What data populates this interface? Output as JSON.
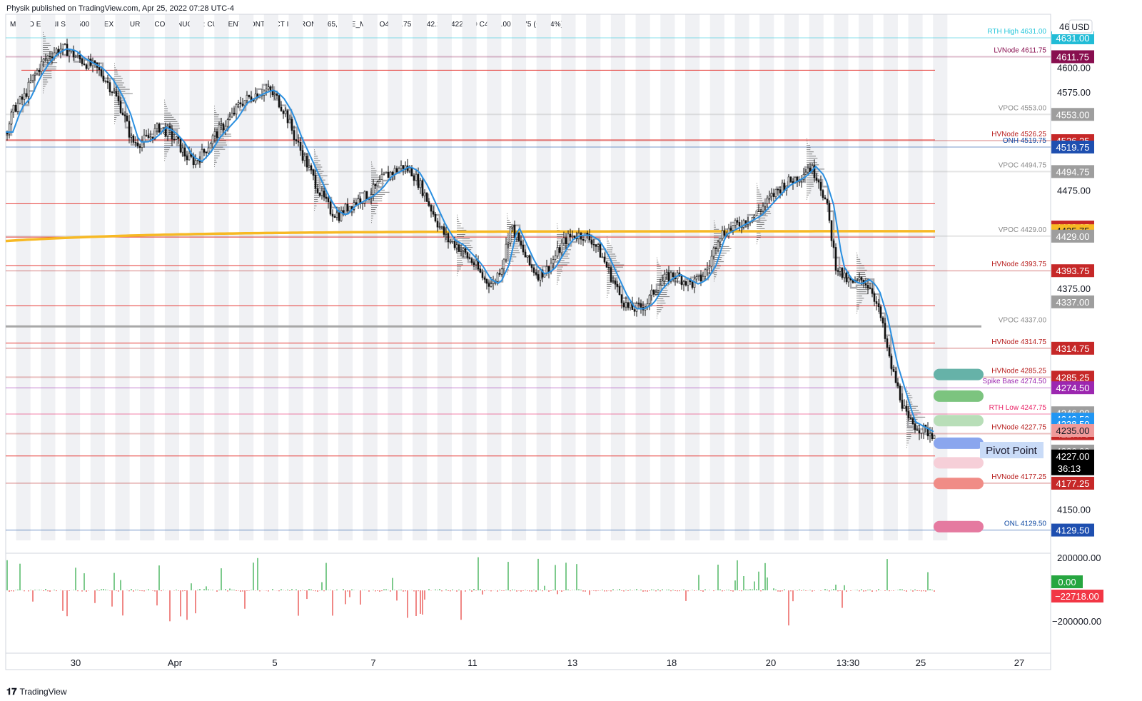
{
  "header": {
    "publisher": "Physik published on TradingView.com, Apr 25, 2022 07:28 UTC-4",
    "title": "MICRO E-MINI S&P 500 INDEX FUTURES (CONTINUOUS: CURRENT CONTRACT IN FRONT), 65, CME_MINI",
    "ohlc": "O4232.75  H4242.25  L4221.50  C4227.00  −5.75 (−0.14%)"
  },
  "footer": {
    "brand": "TradingView",
    "logo_icon": "tradingview-logo-icon"
  },
  "colors": {
    "up": "#26a640",
    "down": "#e53935",
    "vwap": "#f7b924",
    "blue_line": "#2a8fe0",
    "hv": "#b71c1c",
    "vpoc": "#9e9e9e",
    "onh": "#0d47a1",
    "lvnode": "#880e4f",
    "rth_high": "#26c6da",
    "spike": "#9c27b0",
    "rth_low": "#e91e63"
  },
  "chart_data": {
    "type": "candlestick",
    "symbol": "MICRO E-MINI S&P 500 INDEX FUTURES (CONTINUOUS: CURRENT CONTRACT IN FRONT), 65, CME_MINI",
    "currency": "USD",
    "y_axis": {
      "unit": "USD",
      "range": [
        4119,
        4655
      ],
      "ticks": [
        4600.0,
        4575.0,
        4475.0,
        4375.0,
        4150.0
      ],
      "top_partial_label": "465"
    },
    "x_axis": {
      "labels": [
        "30",
        "Apr",
        "5",
        "7",
        "11",
        "13",
        "18",
        "20",
        "13:30",
        "25",
        "27"
      ]
    },
    "price_path": [
      4535,
      4560,
      4570,
      4590,
      4605,
      4615,
      4620,
      4618,
      4610,
      4605,
      4600,
      4590,
      4575,
      4555,
      4525,
      4525,
      4530,
      4540,
      4535,
      4525,
      4510,
      4505,
      4515,
      4530,
      4540,
      4550,
      4565,
      4570,
      4575,
      4578,
      4570,
      4555,
      4530,
      4510,
      4490,
      4470,
      4455,
      4450,
      4460,
      4465,
      4470,
      4478,
      4490,
      4495,
      4500,
      4495,
      4480,
      4460,
      4440,
      4425,
      4420,
      4410,
      4400,
      4385,
      4380,
      4400,
      4440,
      4420,
      4400,
      4390,
      4395,
      4410,
      4425,
      4430,
      4430,
      4425,
      4410,
      4390,
      4370,
      4355,
      4355,
      4360,
      4375,
      4385,
      4390,
      4385,
      4380,
      4385,
      4400,
      4430,
      4435,
      4440,
      4445,
      4450,
      4460,
      4470,
      4480,
      4485,
      4490,
      4500,
      4490,
      4460,
      4400,
      4385,
      4380,
      4385,
      4375,
      4345,
      4300,
      4270,
      4240,
      4235,
      4230,
      4227
    ],
    "level_lines": [
      {
        "label": "RTH High 4631.00",
        "price": 4631.0,
        "axis": "4631.00",
        "color": "#26c6da"
      },
      {
        "label": "LVNode 4611.75",
        "price": 4611.75,
        "axis": "4611.75",
        "color": "#880e4f"
      },
      {
        "label": "VPOC 4553.00",
        "price": 4553.0,
        "axis": "4553.00",
        "color": "#9e9e9e"
      },
      {
        "label": "HVNode 4526.25",
        "price": 4526.25,
        "axis": "4526.25",
        "color": "#b71c1c"
      },
      {
        "label": "ONH 4519.75",
        "price": 4519.75,
        "axis": "4519.75",
        "color": "#0d47a1"
      },
      {
        "label": "VPOC 4494.75",
        "price": 4494.75,
        "axis": "4494.75",
        "color": "#9e9e9e"
      },
      {
        "label": "VPOC 4429.00",
        "price": 4429.0,
        "axis": "4429.00",
        "color": "#9e9e9e"
      },
      {
        "label": "HVNode 4393.75",
        "price": 4393.75,
        "axis": "4393.75",
        "color": "#b71c1c"
      },
      {
        "label": "VPOC 4337.00",
        "price": 4337.0,
        "axis": "",
        "color": "#9e9e9e"
      },
      {
        "label": "HVNode 4314.75",
        "price": 4314.75,
        "axis": "4314.75",
        "color": "#b71c1c"
      },
      {
        "label": "HVNode 4285.25",
        "price": 4285.25,
        "axis": "4285.25",
        "color": "#b71c1c"
      },
      {
        "label": "Spike Base 4274.50",
        "price": 4274.5,
        "axis": "4274.50",
        "color": "#9c27b0"
      },
      {
        "label": "RTH Low 4247.75",
        "price": 4247.75,
        "axis": "4247.75",
        "color": "#e91e63"
      },
      {
        "label": "HVNode 4227.75",
        "price": 4227.75,
        "axis": "4227.75",
        "color": "#b71c1c"
      },
      {
        "label": "HVNode 4177.25",
        "price": 4177.25,
        "axis": "4177.25",
        "color": "#b71c1c"
      },
      {
        "label": "ONL 4129.50",
        "price": 4129.5,
        "axis": "4129.50",
        "color": "#0d47a1"
      }
    ],
    "extra_axis_labels": [
      {
        "text": "4438.25",
        "price": 4438.25,
        "color": "#c62828"
      },
      {
        "text": "4435.75",
        "price": 4434.5,
        "color": "#f7b924"
      },
      {
        "text": "4429.00",
        "price": 4429.0,
        "color": "#9e9e9e",
        "reference": "VPOC 4429.00"
      },
      {
        "text": "4337.00",
        "price": 4362.0,
        "color": "#9e9e9e",
        "reference": "VPOC 4337.00"
      },
      {
        "text": "4246.00",
        "price": 4249.0,
        "color": "#9e9e9e"
      },
      {
        "text": "4242.50",
        "price": 4242.5,
        "color": "#2196f3"
      },
      {
        "text": "4238.50",
        "price": 4237.5,
        "color": "#2196f3"
      },
      {
        "text": "4235.00",
        "price": 4231.0,
        "color": "#ef9a9a"
      },
      {
        "text": "4226.00",
        "price": 4210.0,
        "color": "#9e9e9e"
      }
    ],
    "last_price": {
      "value": "4227.00",
      "countdown": "36:13"
    },
    "vwap_level": 4434,
    "target_zones": [
      {
        "price": 4288,
        "color": "#66b2a8"
      },
      {
        "price": 4266,
        "color": "#7cc47f"
      },
      {
        "price": 4241,
        "color": "#b8deb8"
      },
      {
        "price": 4218,
        "color": "#8aa6ee"
      },
      {
        "price": 4198,
        "color": "#f6cfd8"
      },
      {
        "price": 4177,
        "color": "#f08c86"
      },
      {
        "price": 4133,
        "color": "#e57aa0"
      }
    ],
    "annotation": "Pivot Point",
    "delta_pane": {
      "ticks": [
        "200000.00",
        "−200000.00"
      ],
      "last_up": "0.00",
      "last_down": "−22718.00"
    }
  }
}
